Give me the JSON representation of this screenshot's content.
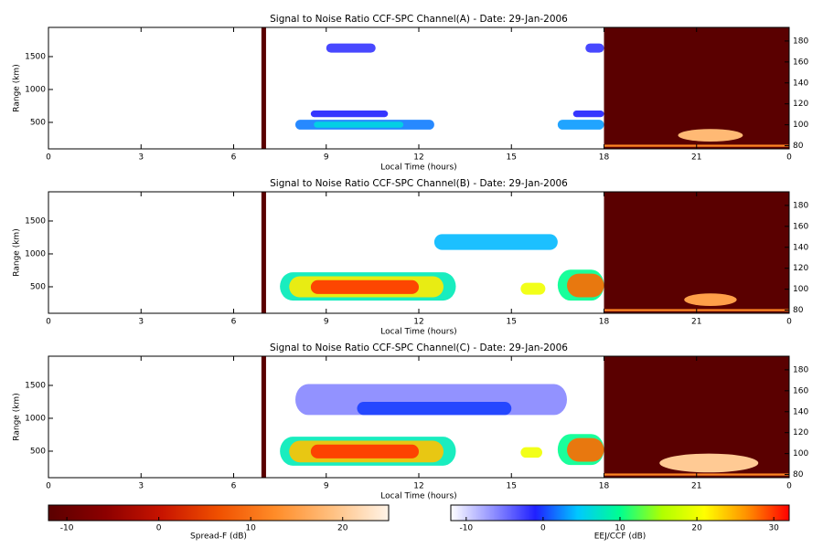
{
  "chart_data": [
    {
      "type": "heatmap",
      "title": "Signal to Noise Ratio CCF-SPC Channel(A) - Date: 29-Jan-2006",
      "xlabel": "Local Time (hours)",
      "ylabel": "Range (km)",
      "xlim": [
        0,
        24
      ],
      "xticks": [
        0,
        3,
        6,
        9,
        12,
        15,
        18,
        21,
        {
          "value": 24,
          "label": "0"
        }
      ],
      "ylim": [
        97,
        1944
      ],
      "yticks": [
        500,
        1000,
        1500
      ],
      "y2lim": [
        77,
        193
      ],
      "y2ticks": [
        80,
        100,
        120,
        140,
        160,
        180
      ],
      "echoes": [
        {
          "x": [
            9,
            10.6
          ],
          "y": [
            1560,
            1700
          ],
          "value": -2
        },
        {
          "x": [
            8.5,
            11
          ],
          "y": [
            580,
            680
          ],
          "value": -1
        },
        {
          "x": [
            8,
            12.5
          ],
          "y": [
            390,
            540
          ],
          "value": 2
        },
        {
          "x": [
            8.6,
            11.5
          ],
          "y": [
            420,
            510
          ],
          "value": 6
        },
        {
          "x": [
            17.4,
            18
          ],
          "y": [
            1560,
            1700
          ],
          "value": -2
        },
        {
          "x": [
            17,
            18
          ],
          "y": [
            580,
            680
          ],
          "value": -1
        },
        {
          "x": [
            16.5,
            18
          ],
          "y": [
            390,
            540
          ],
          "value": 3
        }
      ],
      "spread_f": [
        {
          "x": [
            6.9,
            7.05
          ],
          "y2": [
            77,
            193
          ],
          "value": -12
        },
        {
          "x": [
            18,
            24
          ],
          "y2": [
            77,
            193
          ],
          "value": -12
        },
        {
          "x": [
            20.4,
            22.5
          ],
          "y2": [
            84,
            96
          ],
          "value": 18
        },
        {
          "x": [
            18,
            24
          ],
          "y2": [
            79,
            81
          ],
          "value": 12
        }
      ]
    },
    {
      "type": "heatmap",
      "title": "Signal to Noise Ratio CCF-SPC Channel(B) - Date: 29-Jan-2006",
      "xlabel": "Local Time (hours)",
      "ylabel": "Range (km)",
      "xlim": [
        0,
        24
      ],
      "xticks": [
        0,
        3,
        6,
        9,
        12,
        15,
        18,
        21,
        {
          "value": 24,
          "label": "0"
        }
      ],
      "ylim": [
        97,
        1944
      ],
      "yticks": [
        500,
        1000,
        1500
      ],
      "y2lim": [
        77,
        193
      ],
      "y2ticks": [
        80,
        100,
        120,
        140,
        160,
        180
      ],
      "echoes": [
        {
          "x": [
            12.5,
            16.5
          ],
          "y": [
            1060,
            1300
          ],
          "value": 4
        },
        {
          "x": [
            7.5,
            13.2
          ],
          "y": [
            290,
            720
          ],
          "value": 8
        },
        {
          "x": [
            7.8,
            12.8
          ],
          "y": [
            340,
            660
          ],
          "value": 22
        },
        {
          "x": [
            8.5,
            12
          ],
          "y": [
            390,
            600
          ],
          "value": 30
        },
        {
          "x": [
            15.3,
            16.1
          ],
          "y": [
            380,
            560
          ],
          "value": 20
        },
        {
          "x": [
            16.5,
            18
          ],
          "y": [
            290,
            760
          ],
          "value": 10
        },
        {
          "x": [
            16.8,
            18
          ],
          "y": [
            340,
            700
          ],
          "value": 28
        }
      ],
      "spread_f": [
        {
          "x": [
            6.9,
            7.05
          ],
          "y2": [
            77,
            193
          ],
          "value": -12
        },
        {
          "x": [
            18,
            24
          ],
          "y2": [
            77,
            193
          ],
          "value": -12
        },
        {
          "x": [
            20.6,
            22.3
          ],
          "y2": [
            84,
            96
          ],
          "value": 15
        },
        {
          "x": [
            18,
            24
          ],
          "y2": [
            79,
            81
          ],
          "value": 12
        }
      ]
    },
    {
      "type": "heatmap",
      "title": "Signal to Noise Ratio CCF-SPC Channel(C) - Date: 29-Jan-2006",
      "xlabel": "Local Time (hours)",
      "ylabel": "Range (km)",
      "xlim": [
        0,
        24
      ],
      "xticks": [
        0,
        3,
        6,
        9,
        12,
        15,
        18,
        21,
        {
          "value": 24,
          "label": "0"
        }
      ],
      "ylim": [
        97,
        1944
      ],
      "yticks": [
        500,
        1000,
        1500
      ],
      "y2lim": [
        77,
        193
      ],
      "y2ticks": [
        80,
        100,
        120,
        140,
        160,
        180
      ],
      "echoes": [
        {
          "x": [
            8,
            16.8
          ],
          "y": [
            1050,
            1520
          ],
          "value": -6
        },
        {
          "x": [
            10,
            15
          ],
          "y": [
            1050,
            1250
          ],
          "value": 0
        },
        {
          "x": [
            7.5,
            13.2
          ],
          "y": [
            280,
            720
          ],
          "value": 8
        },
        {
          "x": [
            7.8,
            12.8
          ],
          "y": [
            330,
            660
          ],
          "value": 24
        },
        {
          "x": [
            8.5,
            12
          ],
          "y": [
            390,
            600
          ],
          "value": 30
        },
        {
          "x": [
            15.3,
            16
          ],
          "y": [
            400,
            560
          ],
          "value": 20
        },
        {
          "x": [
            16.5,
            18
          ],
          "y": [
            290,
            760
          ],
          "value": 10
        },
        {
          "x": [
            16.8,
            18
          ],
          "y": [
            340,
            700
          ],
          "value": 28
        }
      ],
      "spread_f": [
        {
          "x": [
            6.9,
            7.05
          ],
          "y2": [
            77,
            193
          ],
          "value": -12
        },
        {
          "x": [
            18,
            24
          ],
          "y2": [
            77,
            193
          ],
          "value": -12
        },
        {
          "x": [
            19.8,
            23
          ],
          "y2": [
            82,
            100
          ],
          "value": 20
        },
        {
          "x": [
            18,
            24
          ],
          "y2": [
            79,
            81
          ],
          "value": 12
        }
      ]
    },
    {
      "type": "colorbar",
      "label": "Spread-F (dB)",
      "xlim": [
        -12,
        25
      ],
      "xticks": [
        -10,
        0,
        10,
        20
      ],
      "colormap": [
        "#5a0000",
        "#8c0000",
        "#c81400",
        "#f05000",
        "#ff8c28",
        "#ffc080",
        "#fff4e8"
      ]
    },
    {
      "type": "colorbar",
      "label": "EEJ/CCF (dB)",
      "xlim": [
        -12,
        32
      ],
      "xticks": [
        -10,
        0,
        10,
        20,
        30
      ],
      "colormap": [
        "#ffffff",
        "#9090ff",
        "#2020ff",
        "#00c8ff",
        "#00ff90",
        "#b0ff00",
        "#ffff00",
        "#ff9000",
        "#ff0000"
      ]
    }
  ]
}
